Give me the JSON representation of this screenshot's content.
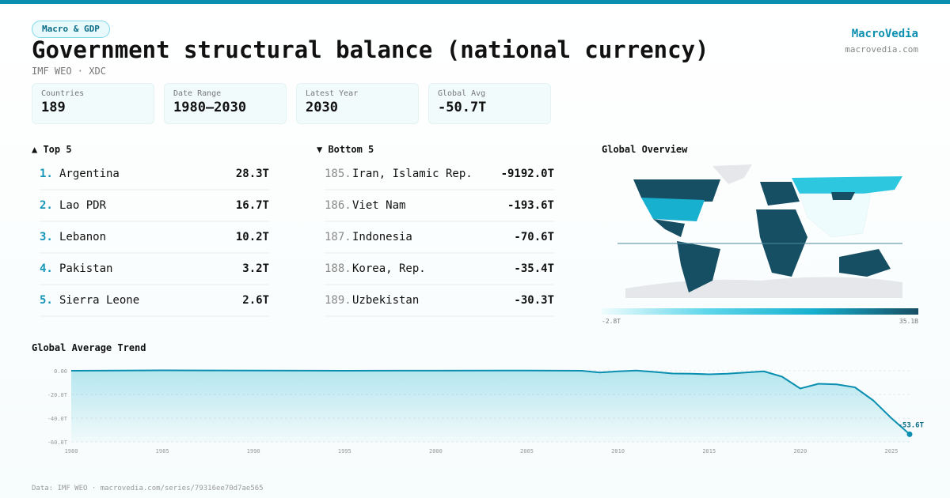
{
  "header": {
    "category": "Macro & GDP",
    "title": "Government structural balance (national currency)",
    "subtitle": "IMF WEO · XDC",
    "brand": "MacroVedia",
    "site": "macrovedia.com"
  },
  "stats": [
    {
      "label": "Countries",
      "value": "189"
    },
    {
      "label": "Date Range",
      "value": "1980–2030"
    },
    {
      "label": "Latest Year",
      "value": "2030"
    },
    {
      "label": "Global Avg",
      "value": "-50.7T"
    }
  ],
  "top5": {
    "title": "▲ Top 5",
    "items": [
      {
        "rank": "1.",
        "name": "Argentina",
        "value": "28.3T"
      },
      {
        "rank": "2.",
        "name": "Lao PDR",
        "value": "16.7T"
      },
      {
        "rank": "3.",
        "name": "Lebanon",
        "value": "10.2T"
      },
      {
        "rank": "4.",
        "name": "Pakistan",
        "value": "3.2T"
      },
      {
        "rank": "5.",
        "name": "Sierra Leone",
        "value": "2.6T"
      }
    ]
  },
  "bottom5": {
    "title": "▼ Bottom 5",
    "items": [
      {
        "rank": "185.",
        "name": "Iran, Islamic Rep.",
        "value": "-9192.0T"
      },
      {
        "rank": "186.",
        "name": "Viet Nam",
        "value": "-193.6T"
      },
      {
        "rank": "187.",
        "name": "Indonesia",
        "value": "-70.6T"
      },
      {
        "rank": "188.",
        "name": "Korea, Rep.",
        "value": "-35.4T"
      },
      {
        "rank": "189.",
        "name": "Uzbekistan",
        "value": "-30.3T"
      }
    ]
  },
  "map": {
    "title": "Global Overview",
    "legend_min": "-2.8T",
    "legend_max": "35.1B",
    "colors": {
      "low": "#effcfd",
      "mid": "#17b0cf",
      "high": "#164e63",
      "nodata": "#e5e7eb"
    }
  },
  "chart_data": {
    "type": "area",
    "title": "Global Average Trend",
    "x": [
      1980,
      1985,
      1990,
      1995,
      2000,
      2005,
      2008,
      2009,
      2010,
      2011,
      2012,
      2013,
      2014,
      2015,
      2016,
      2017,
      2018,
      2019,
      2020,
      2021,
      2022,
      2023,
      2024,
      2025,
      2026
    ],
    "values": [
      0,
      0.3,
      0.2,
      0,
      0.1,
      0.2,
      0,
      -1.5,
      -0.5,
      0.2,
      -1,
      -2.3,
      -2.5,
      -3,
      -2.5,
      -1.5,
      -0.5,
      -5,
      -15,
      -11,
      -11.5,
      -14,
      -25,
      -40,
      -53.6
    ],
    "yticks": [
      "0.00",
      "-20.0T",
      "-40.0T",
      "-60.0T"
    ],
    "ytick_values": [
      0,
      -20,
      -40,
      -60
    ],
    "xticks": [
      "1980",
      "1985",
      "1990",
      "1995",
      "2000",
      "2005",
      "2010",
      "2015",
      "2020",
      "2025"
    ],
    "ylim": [
      -60,
      0
    ],
    "xlim": [
      1980,
      2026
    ],
    "last_label": "-53.6T",
    "color": "#0b8fb0",
    "grid": true
  },
  "footer": "Data: IMF WEO · macrovedia.com/series/79316ee70d7ae565"
}
